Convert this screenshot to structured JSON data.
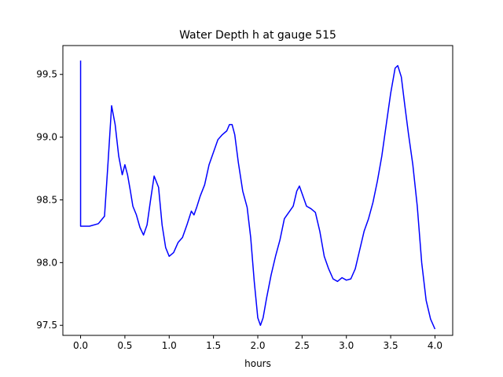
{
  "chart_data": {
    "type": "line",
    "title": "Water Depth h at gauge 515",
    "xlabel": "hours",
    "ylabel": "",
    "xlim": [
      -0.2,
      4.2
    ],
    "ylim": [
      97.42,
      99.73
    ],
    "xticks": [
      0.0,
      0.5,
      1.0,
      1.5,
      2.0,
      2.5,
      3.0,
      3.5,
      4.0
    ],
    "xtick_labels": [
      "0.0",
      "0.5",
      "1.0",
      "1.5",
      "2.0",
      "2.5",
      "3.0",
      "3.5",
      "4.0"
    ],
    "yticks": [
      97.5,
      98.0,
      98.5,
      99.0,
      99.5
    ],
    "ytick_labels": [
      "97.5",
      "98.0",
      "98.5",
      "99.0",
      "99.5"
    ],
    "grid": false,
    "series": [
      {
        "color": "#0000ff",
        "x": [
          0.0,
          0.0,
          0.1,
          0.2,
          0.27,
          0.31,
          0.35,
          0.39,
          0.43,
          0.47,
          0.5,
          0.53,
          0.56,
          0.59,
          0.63,
          0.67,
          0.71,
          0.75,
          0.79,
          0.83,
          0.88,
          0.92,
          0.96,
          1.0,
          1.05,
          1.1,
          1.15,
          1.2,
          1.25,
          1.28,
          1.31,
          1.35,
          1.4,
          1.45,
          1.5,
          1.55,
          1.6,
          1.65,
          1.68,
          1.71,
          1.74,
          1.78,
          1.83,
          1.88,
          1.92,
          1.96,
          2.0,
          2.03,
          2.06,
          2.1,
          2.15,
          2.2,
          2.25,
          2.3,
          2.35,
          2.4,
          2.44,
          2.47,
          2.5,
          2.55,
          2.6,
          2.65,
          2.7,
          2.75,
          2.8,
          2.85,
          2.9,
          2.95,
          3.0,
          3.05,
          3.1,
          3.15,
          3.2,
          3.25,
          3.3,
          3.35,
          3.4,
          3.45,
          3.5,
          3.55,
          3.58,
          3.62,
          3.66,
          3.7,
          3.75,
          3.8,
          3.85,
          3.9,
          3.95,
          4.0
        ],
        "y": [
          99.61,
          98.29,
          98.29,
          98.31,
          98.37,
          98.8,
          99.25,
          99.1,
          98.85,
          98.7,
          98.78,
          98.7,
          98.58,
          98.45,
          98.38,
          98.28,
          98.22,
          98.3,
          98.5,
          98.69,
          98.6,
          98.3,
          98.12,
          98.05,
          98.08,
          98.16,
          98.2,
          98.3,
          98.41,
          98.38,
          98.44,
          98.53,
          98.62,
          98.78,
          98.88,
          98.98,
          99.02,
          99.05,
          99.1,
          99.1,
          99.02,
          98.8,
          98.57,
          98.44,
          98.2,
          97.85,
          97.56,
          97.5,
          97.56,
          97.72,
          97.9,
          98.05,
          98.18,
          98.35,
          98.4,
          98.45,
          98.57,
          98.61,
          98.55,
          98.45,
          98.43,
          98.4,
          98.25,
          98.05,
          97.95,
          97.87,
          97.85,
          97.88,
          97.86,
          97.87,
          97.95,
          98.1,
          98.25,
          98.35,
          98.48,
          98.65,
          98.85,
          99.1,
          99.35,
          99.55,
          99.57,
          99.48,
          99.25,
          99.03,
          98.78,
          98.45,
          98.0,
          97.7,
          97.55,
          97.47
        ]
      }
    ]
  }
}
